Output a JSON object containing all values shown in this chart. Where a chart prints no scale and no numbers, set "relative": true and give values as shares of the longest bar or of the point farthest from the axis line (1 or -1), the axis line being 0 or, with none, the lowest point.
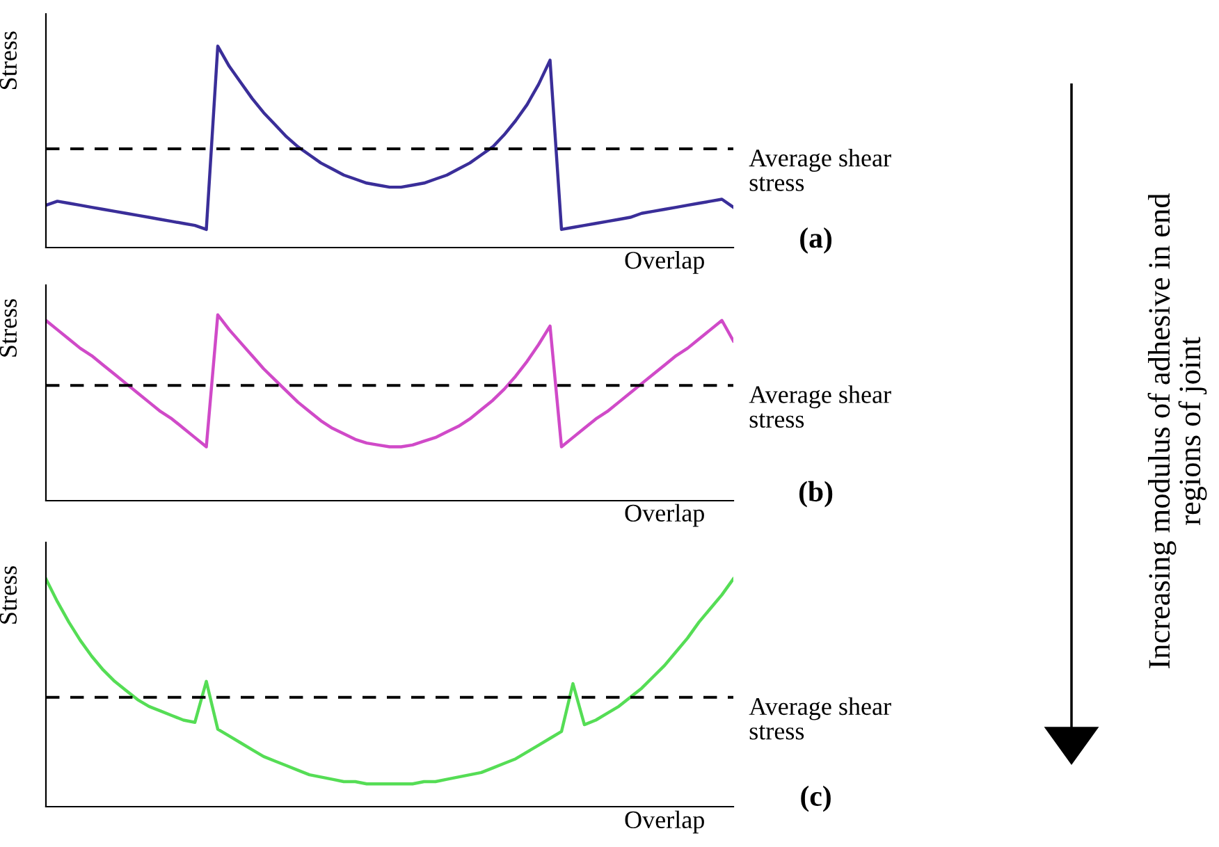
{
  "chart_data": [
    {
      "type": "line",
      "relative": true,
      "ylabel": "Stress",
      "xlabel": "Overlap",
      "categories": [
        null,
        null,
        null,
        null,
        null,
        null,
        null,
        null,
        null,
        null,
        null,
        null,
        null,
        null,
        null,
        null,
        null,
        null,
        null,
        null,
        null,
        null,
        null,
        null,
        null,
        null,
        null,
        null,
        null,
        null,
        null,
        null,
        null,
        null,
        null,
        null,
        null,
        null,
        null,
        null,
        null,
        null,
        null,
        null,
        null,
        null,
        null,
        null,
        null,
        null,
        null,
        null,
        null,
        null,
        null,
        null,
        null,
        null,
        null,
        null,
        null
      ],
      "series": [
        {
          "color": "#3a2e99",
          "values": [
            0.21,
            0.23,
            0.22,
            0.21,
            0.2,
            0.19,
            0.18,
            0.17,
            0.16,
            0.15,
            0.14,
            0.13,
            0.12,
            0.11,
            0.09,
            1.0,
            0.9,
            0.82,
            0.74,
            0.67,
            0.61,
            0.55,
            0.5,
            0.46,
            0.42,
            0.39,
            0.36,
            0.34,
            0.32,
            0.31,
            0.3,
            0.3,
            0.31,
            0.32,
            0.34,
            0.36,
            0.39,
            0.42,
            0.46,
            0.5,
            0.56,
            0.63,
            0.71,
            0.81,
            0.93,
            0.09,
            0.1,
            0.11,
            0.12,
            0.13,
            0.14,
            0.15,
            0.17,
            0.18,
            0.19,
            0.2,
            0.21,
            0.22,
            0.23,
            0.24,
            0.2
          ]
        }
      ],
      "ref_lines": [
        {
          "axis": "y",
          "value": 0.49,
          "label": "Average shear stress",
          "color": "#000000",
          "line_style": "dashed"
        }
      ],
      "annotations": [
        "(a)",
        "Increasing modulus of adhesive in end regions of joint"
      ]
    },
    {
      "type": "line",
      "relative": true,
      "ylabel": "Stress",
      "xlabel": "Overlap",
      "categories": [
        null,
        null,
        null,
        null,
        null,
        null,
        null,
        null,
        null,
        null,
        null,
        null,
        null,
        null,
        null,
        null,
        null,
        null,
        null,
        null,
        null,
        null,
        null,
        null,
        null,
        null,
        null,
        null,
        null,
        null,
        null,
        null,
        null,
        null,
        null,
        null,
        null,
        null,
        null,
        null,
        null,
        null,
        null,
        null,
        null,
        null,
        null,
        null,
        null,
        null,
        null,
        null,
        null,
        null,
        null,
        null,
        null,
        null,
        null,
        null,
        null
      ],
      "series": [
        {
          "color": "#d04ac8",
          "values": [
            0.97,
            0.92,
            0.87,
            0.82,
            0.78,
            0.73,
            0.68,
            0.63,
            0.58,
            0.53,
            0.48,
            0.44,
            0.39,
            0.34,
            0.29,
            1.0,
            0.92,
            0.85,
            0.78,
            0.71,
            0.65,
            0.59,
            0.53,
            0.48,
            0.43,
            0.39,
            0.36,
            0.33,
            0.31,
            0.3,
            0.29,
            0.29,
            0.3,
            0.32,
            0.34,
            0.37,
            0.4,
            0.44,
            0.49,
            0.54,
            0.6,
            0.67,
            0.75,
            0.84,
            0.94,
            0.29,
            0.34,
            0.39,
            0.44,
            0.48,
            0.53,
            0.58,
            0.63,
            0.68,
            0.73,
            0.78,
            0.82,
            0.87,
            0.92,
            0.97,
            0.86
          ]
        }
      ],
      "ref_lines": [
        {
          "axis": "y",
          "value": 0.62,
          "label": "Average shear stress",
          "color": "#000000",
          "line_style": "dashed"
        }
      ],
      "annotations": [
        "(b)"
      ]
    },
    {
      "type": "line",
      "relative": true,
      "ylabel": "Stress",
      "xlabel": "Overlap",
      "categories": [
        null,
        null,
        null,
        null,
        null,
        null,
        null,
        null,
        null,
        null,
        null,
        null,
        null,
        null,
        null,
        null,
        null,
        null,
        null,
        null,
        null,
        null,
        null,
        null,
        null,
        null,
        null,
        null,
        null,
        null,
        null,
        null,
        null,
        null,
        null,
        null,
        null,
        null,
        null,
        null,
        null,
        null,
        null,
        null,
        null,
        null,
        null,
        null,
        null,
        null,
        null,
        null,
        null,
        null,
        null,
        null,
        null,
        null,
        null,
        null,
        null
      ],
      "series": [
        {
          "color": "#55dd55",
          "values": [
            1.0,
            0.9,
            0.81,
            0.73,
            0.66,
            0.6,
            0.55,
            0.51,
            0.47,
            0.44,
            0.42,
            0.4,
            0.38,
            0.37,
            0.55,
            0.34,
            0.31,
            0.28,
            0.25,
            0.22,
            0.2,
            0.18,
            0.16,
            0.14,
            0.13,
            0.12,
            0.11,
            0.11,
            0.1,
            0.1,
            0.1,
            0.1,
            0.1,
            0.11,
            0.11,
            0.12,
            0.13,
            0.14,
            0.15,
            0.17,
            0.19,
            0.21,
            0.24,
            0.27,
            0.3,
            0.33,
            0.54,
            0.36,
            0.38,
            0.41,
            0.44,
            0.48,
            0.52,
            0.57,
            0.62,
            0.68,
            0.74,
            0.81,
            0.87,
            0.93,
            1.0
          ]
        }
      ],
      "ref_lines": [
        {
          "axis": "y",
          "value": 0.48,
          "label": "Average shear stress",
          "color": "#000000",
          "line_style": "dashed"
        }
      ],
      "annotations": [
        "(c)"
      ]
    }
  ]
}
